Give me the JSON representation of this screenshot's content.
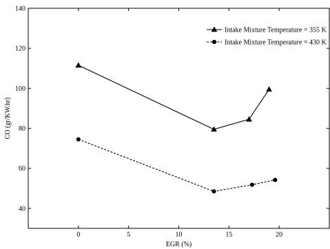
{
  "chart_data": {
    "type": "line",
    "xlabel": "EGR (%)",
    "ylabel": "CO (gr/KW.hr)",
    "xlim": [
      -5,
      25
    ],
    "ylim": [
      30,
      140
    ],
    "xticks": [
      0,
      5,
      10,
      15,
      20
    ],
    "yticks": [
      40,
      60,
      80,
      100,
      120,
      140
    ],
    "grid": false,
    "legend_position": "top-right",
    "series": [
      {
        "name": "Intake Mixture Temperature = 355 K",
        "marker": "triangle",
        "line_style": "solid",
        "color": "#000000",
        "x": [
          0,
          13.5,
          17,
          19
        ],
        "y": [
          111.5,
          79.5,
          84.5,
          99.5
        ]
      },
      {
        "name": "Intake Mixture Temperature = 430 K",
        "marker": "circle",
        "line_style": "dashed",
        "color": "#000000",
        "x": [
          0,
          13.5,
          17.3,
          19.6
        ],
        "y": [
          74.5,
          48.5,
          51.8,
          54.2
        ]
      }
    ]
  }
}
